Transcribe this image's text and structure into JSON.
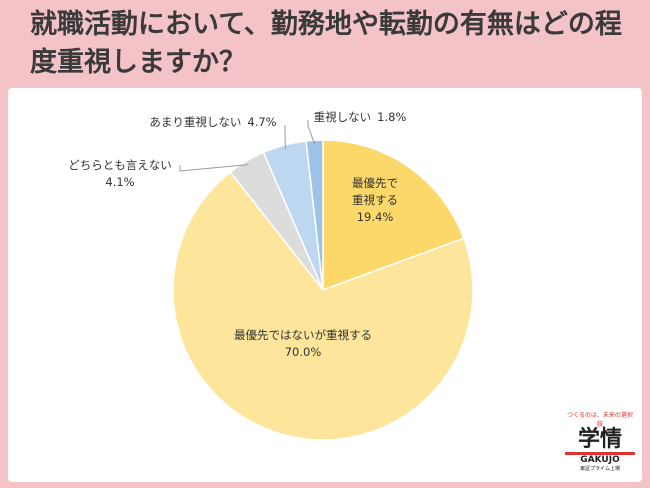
{
  "chart_data": {
    "type": "pie",
    "title": "就職活動において、勤務地や転勤の有無はどの程度重視しますか？",
    "categories": [
      "最優先で重視する",
      "最優先ではないが重視する",
      "どちらとも言えない",
      "あまり重視しない",
      "重視しない"
    ],
    "values": [
      19.4,
      70.0,
      4.1,
      4.7,
      1.8
    ],
    "value_labels": [
      "19.4%",
      "70.0%",
      "4.1%",
      "4.7%",
      "1.8%"
    ],
    "colors": [
      "#fcd86a",
      "#fde59b",
      "#dcdcdc",
      "#bcd7ef",
      "#9dc3e6"
    ]
  },
  "logo": {
    "tagline": "つくるのは、未来の選択肢",
    "name": "学情",
    "romaji": "GAKUJO",
    "note": "東証プライム上場"
  }
}
